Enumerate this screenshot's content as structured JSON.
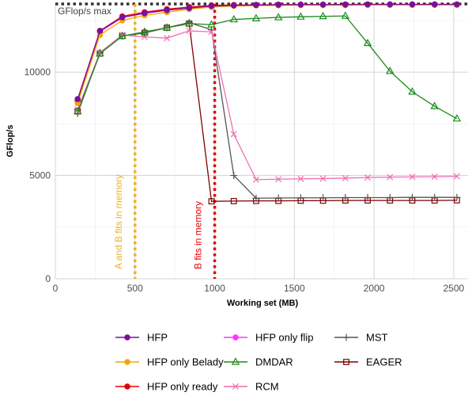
{
  "chart_data": {
    "type": "line",
    "xlabel": "Working set (MB)",
    "ylabel": "GFlop/s",
    "xlim": [
      0,
      2590
    ],
    "ylim": [
      0,
      13300
    ],
    "xticks": [
      0,
      500,
      1000,
      1500,
      2000,
      2500
    ],
    "yticks": [
      0,
      5000,
      10000
    ],
    "grid": true,
    "legend_position": "bottom",
    "x": [
      140,
      280,
      420,
      560,
      700,
      840,
      980,
      1120,
      1260,
      1400,
      1540,
      1680,
      1820,
      1960,
      2100,
      2240,
      2380,
      2520
    ],
    "series": [
      {
        "name": "HFP",
        "color": "#7b0fa0",
        "marker": "circle",
        "values": [
          8700,
          12000,
          12650,
          12850,
          13000,
          13100,
          13200,
          13230,
          13250,
          13260,
          13270,
          13270,
          13270,
          13280,
          13280,
          13280,
          13280,
          13280
        ]
      },
      {
        "name": "HFP only Belady",
        "color": "#f5a500",
        "marker": "circle",
        "values": [
          8500,
          11800,
          12500,
          12750,
          12900,
          13050,
          13150,
          13200,
          13220,
          13230,
          13240,
          13240,
          13240,
          13250,
          13250,
          13250,
          13250,
          13250
        ]
      },
      {
        "name": "HFP only ready",
        "color": "#e60000",
        "marker": "circle",
        "values": [
          8600,
          12000,
          12700,
          12900,
          13050,
          13150,
          13230,
          13250,
          13260,
          13270,
          13270,
          13270,
          13280,
          13280,
          13280,
          13280,
          13280,
          13280
        ]
      },
      {
        "name": "HFP only flip",
        "color": "#ff33ff",
        "marker": "circle",
        "values": [
          8600,
          11950,
          12650,
          12850,
          13000,
          13100,
          13200,
          13230,
          13250,
          13260,
          13260,
          13270,
          13270,
          13270,
          13270,
          13270,
          13270,
          13270
        ]
      },
      {
        "name": "DMDAR",
        "color": "#1a8c1a",
        "marker": "triangle",
        "values": [
          8100,
          10900,
          11750,
          11950,
          12150,
          12350,
          12300,
          12550,
          12600,
          12650,
          12680,
          12700,
          12720,
          11400,
          10050,
          9050,
          8350,
          7750
        ]
      },
      {
        "name": "RCM",
        "color": "#ee6fb2",
        "marker": "x",
        "values": [
          8200,
          10950,
          11800,
          11700,
          11650,
          12000,
          11950,
          7000,
          4800,
          4820,
          4840,
          4850,
          4870,
          4900,
          4920,
          4930,
          4940,
          4960
        ]
      },
      {
        "name": "MST",
        "color": "#555555",
        "marker": "plus",
        "values": [
          8000,
          10950,
          11750,
          11900,
          12150,
          12400,
          12050,
          5000,
          3900,
          3910,
          3920,
          3920,
          3930,
          3930,
          3930,
          3940,
          3940,
          3940
        ]
      },
      {
        "name": "EAGER",
        "color": "#800000",
        "marker": "square",
        "values": [
          8100,
          10900,
          11750,
          11900,
          12150,
          12350,
          3750,
          3760,
          3770,
          3770,
          3780,
          3780,
          3790,
          3790,
          3790,
          3790,
          3790,
          3800
        ]
      }
    ],
    "reference_lines": [
      {
        "axis": "y",
        "value": 13300,
        "label": "GFlop/s max",
        "color": "#333333"
      },
      {
        "axis": "x",
        "value": 500,
        "label": "A and B fits in memory",
        "color": "#f2b01e"
      },
      {
        "axis": "x",
        "value": 1000,
        "label": "B fits in memory",
        "color": "#e60000"
      }
    ]
  }
}
